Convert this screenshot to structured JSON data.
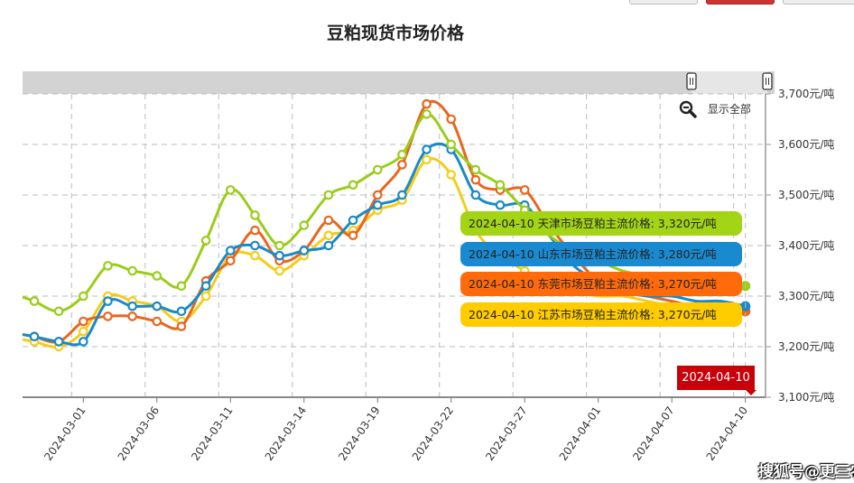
{
  "chart_data": {
    "type": "line",
    "title": "豆粕现货市场价格",
    "x": [
      "2024-02-28",
      "2024-02-29",
      "2024-03-01",
      "2024-03-04",
      "2024-03-05",
      "2024-03-06",
      "2024-03-07",
      "2024-03-08",
      "2024-03-11",
      "2024-03-12",
      "2024-03-13",
      "2024-03-14",
      "2024-03-15",
      "2024-03-18",
      "2024-03-19",
      "2024-03-20",
      "2024-03-21",
      "2024-03-22",
      "2024-03-25",
      "2024-03-26",
      "2024-03-27",
      "2024-03-28",
      "2024-03-29",
      "2024-04-01",
      "2024-04-02",
      "2024-04-03",
      "2024-04-07",
      "2024-04-08",
      "2024-04-09",
      "2024-04-10"
    ],
    "x_tick_labels": [
      "2024-03-01",
      "2024-03-06",
      "2024-03-11",
      "2024-03-14",
      "2024-03-19",
      "2024-03-22",
      "2024-03-27",
      "2024-04-01",
      "2024-04-07",
      "2024-04-10"
    ],
    "y_tick_labels": [
      "3,100元/吨",
      "3,200元/吨",
      "3,300元/吨",
      "3,400元/吨",
      "3,500元/吨",
      "3,600元/吨",
      "3,700元/吨"
    ],
    "ylim": [
      3100,
      3700
    ],
    "grid": true,
    "y_axis_side": "right",
    "series": [
      {
        "name": "天津市场豆粕主流价格",
        "color": "#9acd1a",
        "values": [
          3290,
          3270,
          3300,
          3360,
          3350,
          3340,
          3320,
          3410,
          3510,
          3460,
          3400,
          3440,
          3500,
          3520,
          3550,
          3580,
          3660,
          3600,
          3550,
          3520,
          3470,
          3420,
          3390,
          3370,
          3350,
          3340,
          3330,
          3320,
          3320,
          3320
        ]
      },
      {
        "name": "山东市场豆粕主流价格",
        "color": "#1a8ac6",
        "values": [
          3220,
          3210,
          3210,
          3290,
          3280,
          3280,
          3270,
          3320,
          3390,
          3400,
          3380,
          3390,
          3400,
          3450,
          3480,
          3500,
          3590,
          3590,
          3500,
          3480,
          3480,
          3420,
          3360,
          3330,
          3310,
          3300,
          3300,
          3290,
          3290,
          3280
        ]
      },
      {
        "name": "东莞市场豆粕主流价格",
        "color": "#e8661e",
        "values": [
          3220,
          3210,
          3250,
          3260,
          3260,
          3250,
          3240,
          3330,
          3370,
          3430,
          3370,
          3390,
          3450,
          3420,
          3500,
          3560,
          3680,
          3650,
          3530,
          3510,
          3510,
          3440,
          3380,
          3330,
          3310,
          3300,
          3290,
          3280,
          3280,
          3270
        ]
      },
      {
        "name": "江苏市场豆粕主流价格",
        "color": "#f5cc1a",
        "values": [
          3210,
          3200,
          3230,
          3300,
          3290,
          3280,
          3250,
          3300,
          3380,
          3380,
          3350,
          3380,
          3420,
          3430,
          3470,
          3490,
          3570,
          3540,
          3430,
          3380,
          3350,
          3320,
          3310,
          3300,
          3300,
          3290,
          3280,
          3270,
          3270,
          3270
        ]
      }
    ]
  },
  "tooltip": {
    "date": "2024-04-10",
    "rows": [
      {
        "text": "2024-04-10 天津市场豆粕主流价格: 3,320元/吨",
        "bg": "#a3d416"
      },
      {
        "text": "2024-04-10 山东市场豆粕主流价格: 3,280元/吨",
        "bg": "#1a8ad0"
      },
      {
        "text": "2024-04-10 东莞市场豆粕主流价格: 3,270元/吨",
        "bg": "#ff6a0a"
      },
      {
        "text": "2024-04-10 江苏市场豆粕主流价格: 3,270元/吨",
        "bg": "#ffcc00"
      }
    ]
  },
  "reset_zoom_label": "显示全部",
  "watermark": "搜狐号@更三农"
}
